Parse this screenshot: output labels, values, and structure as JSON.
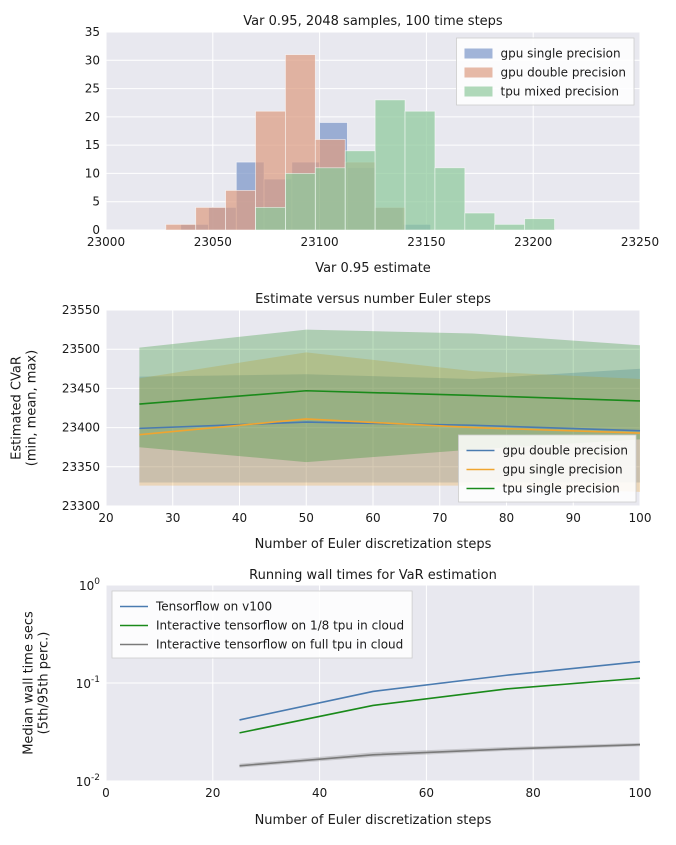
{
  "chart_data": [
    {
      "type": "histogram",
      "title": "Var 0.95, 2048 samples, 100 time steps",
      "xlabel": "Var 0.95 estimate",
      "ylabel": "",
      "xlim": [
        23000,
        23250
      ],
      "ylim": [
        0,
        35
      ],
      "xticks": [
        23000,
        23050,
        23100,
        23150,
        23200,
        23250
      ],
      "yticks": [
        0,
        5,
        10,
        15,
        20,
        25,
        30,
        35
      ],
      "legend_position": "top-right",
      "series": [
        {
          "name": "gpu single precision",
          "color": "#7b96c8",
          "bins": [
            {
              "x0": 23035,
              "x1": 23048,
              "count": 1
            },
            {
              "x0": 23048,
              "x1": 23061,
              "count": 4
            },
            {
              "x0": 23061,
              "x1": 23074,
              "count": 12
            },
            {
              "x0": 23074,
              "x1": 23087,
              "count": 9
            },
            {
              "x0": 23087,
              "x1": 23100,
              "count": 12
            },
            {
              "x0": 23100,
              "x1": 23113,
              "count": 19
            },
            {
              "x0": 23113,
              "x1": 23126,
              "count": 11
            },
            {
              "x0": 23126,
              "x1": 23139,
              "count": 4
            },
            {
              "x0": 23139,
              "x1": 23152,
              "count": 1
            }
          ]
        },
        {
          "name": "gpu double precision",
          "color": "#dd9d82",
          "bins": [
            {
              "x0": 23028,
              "x1": 23042,
              "count": 1
            },
            {
              "x0": 23042,
              "x1": 23056,
              "count": 4
            },
            {
              "x0": 23056,
              "x1": 23070,
              "count": 7
            },
            {
              "x0": 23070,
              "x1": 23084,
              "count": 21
            },
            {
              "x0": 23084,
              "x1": 23098,
              "count": 31
            },
            {
              "x0": 23098,
              "x1": 23112,
              "count": 16
            },
            {
              "x0": 23112,
              "x1": 23126,
              "count": 12
            },
            {
              "x0": 23126,
              "x1": 23140,
              "count": 4
            }
          ]
        },
        {
          "name": "tpu mixed precision",
          "color": "#8ec99b",
          "bins": [
            {
              "x0": 23070,
              "x1": 23084,
              "count": 4
            },
            {
              "x0": 23084,
              "x1": 23098,
              "count": 10
            },
            {
              "x0": 23098,
              "x1": 23112,
              "count": 11
            },
            {
              "x0": 23112,
              "x1": 23126,
              "count": 14
            },
            {
              "x0": 23126,
              "x1": 23140,
              "count": 23
            },
            {
              "x0": 23140,
              "x1": 23154,
              "count": 21
            },
            {
              "x0": 23154,
              "x1": 23168,
              "count": 11
            },
            {
              "x0": 23168,
              "x1": 23182,
              "count": 3
            },
            {
              "x0": 23182,
              "x1": 23196,
              "count": 1
            },
            {
              "x0": 23196,
              "x1": 23210,
              "count": 2
            }
          ]
        }
      ]
    },
    {
      "type": "line",
      "title": "Estimate versus number Euler steps",
      "xlabel": "Number of Euler discretization steps",
      "ylabel": "Estimated CVaR\n(min, mean, max)",
      "xlim": [
        20,
        100
      ],
      "ylim": [
        23300,
        23550
      ],
      "xticks": [
        20,
        30,
        40,
        50,
        60,
        70,
        80,
        90,
        100
      ],
      "yticks": [
        23300,
        23350,
        23400,
        23450,
        23500,
        23550
      ],
      "legend_position": "bottom-right",
      "x": [
        25,
        50,
        75,
        100
      ],
      "series": [
        {
          "name": "gpu double precision",
          "color": "#4a7bb0",
          "mean": [
            23399,
            23407,
            23403,
            23396
          ],
          "min": [
            23330,
            23330,
            23330,
            23330
          ],
          "max": [
            23465,
            23468,
            23462,
            23475
          ]
        },
        {
          "name": "gpu single precision",
          "color": "#f0a530",
          "mean": [
            23391,
            23411,
            23400,
            23393
          ],
          "min": [
            23326,
            23326,
            23326,
            23318
          ],
          "max": [
            23463,
            23496,
            23472,
            23462
          ]
        },
        {
          "name": "tpu single precision",
          "color": "#1a8a1a",
          "mean": [
            23430,
            23447,
            23441,
            23434
          ],
          "min": [
            23375,
            23356,
            23372,
            23385
          ],
          "max": [
            23502,
            23525,
            23520,
            23505
          ]
        }
      ]
    },
    {
      "type": "line",
      "title": "Running wall times for VaR estimation",
      "xlabel": "Number of Euler discretization steps",
      "ylabel": "Median wall time secs\n(5th/95th perc.)",
      "xlim": [
        0,
        100
      ],
      "ylim": [
        0.01,
        1
      ],
      "yscale": "log",
      "xticks": [
        0,
        20,
        40,
        60,
        80,
        100
      ],
      "yticks": [
        "10^0",
        "10^-1",
        "10^-2"
      ],
      "legend_position": "top-left",
      "x": [
        25,
        50,
        75,
        100
      ],
      "series": [
        {
          "name": "Tensorflow on v100",
          "color": "#4a7bb0",
          "values": [
            0.042,
            0.082,
            0.12,
            0.165
          ]
        },
        {
          "name": "Interactive tensorflow on 1/8 tpu in cloud",
          "color": "#1a8a1a",
          "values": [
            0.031,
            0.059,
            0.087,
            0.112
          ]
        },
        {
          "name": "Interactive tensorflow on full tpu in cloud",
          "color": "#7a7a7a",
          "values": [
            0.0143,
            0.0185,
            0.0212,
            0.0235
          ],
          "low": [
            0.0137,
            0.0176,
            0.0203,
            0.0226
          ],
          "high": [
            0.015,
            0.0196,
            0.0222,
            0.0245
          ]
        }
      ]
    }
  ]
}
